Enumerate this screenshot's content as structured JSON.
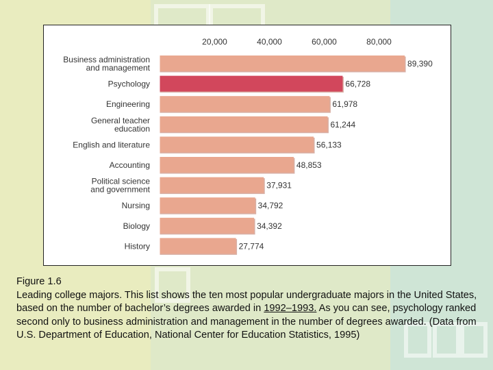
{
  "chart_data": {
    "type": "bar",
    "orientation": "horizontal",
    "categories": [
      "Business administration and management",
      "Psychology",
      "Engineering",
      "General teacher education",
      "English and literature",
      "Accounting",
      "Political science and government",
      "Nursing",
      "Biology",
      "History"
    ],
    "category_lines": [
      [
        "Business administration",
        "and management"
      ],
      [
        "Psychology"
      ],
      [
        "Engineering"
      ],
      [
        "General teacher",
        "education"
      ],
      [
        "English and literature"
      ],
      [
        "Accounting"
      ],
      [
        "Political science",
        "and government"
      ],
      [
        "Nursing"
      ],
      [
        "Biology"
      ],
      [
        "History"
      ]
    ],
    "values": [
      89390,
      66728,
      61978,
      61244,
      56133,
      48853,
      37931,
      34792,
      34392,
      27774
    ],
    "value_labels": [
      "89,390",
      "66,728",
      "61,978",
      "61,244",
      "56,133",
      "48,853",
      "37,931",
      "34,792",
      "34,392",
      "27,774"
    ],
    "xticks": [
      20000,
      40000,
      60000,
      80000
    ],
    "xtick_labels": [
      "20,000",
      "40,000",
      "60,000",
      "80,000"
    ],
    "xlim": [
      0,
      92000
    ],
    "highlight_index": 1,
    "colors": {
      "bar": "#e9a78f",
      "highlight": "#d2475c",
      "bar_edge": "#b86e5a"
    },
    "title": "",
    "xlabel": "",
    "ylabel": ""
  },
  "caption": {
    "title": "Figure 1.6",
    "text_before": "Leading college majors. This list shows the ten most popular undergraduate majors in the United States, based on the number of bachelor’s degrees awarded in ",
    "text_underlined": "1992–1993.",
    "text_after": " As you can see, psychology ranked second only to business administration and management in the number of degrees awarded. (Data from U.S. Department of Education, National Center for Education Statistics, 1995)"
  }
}
